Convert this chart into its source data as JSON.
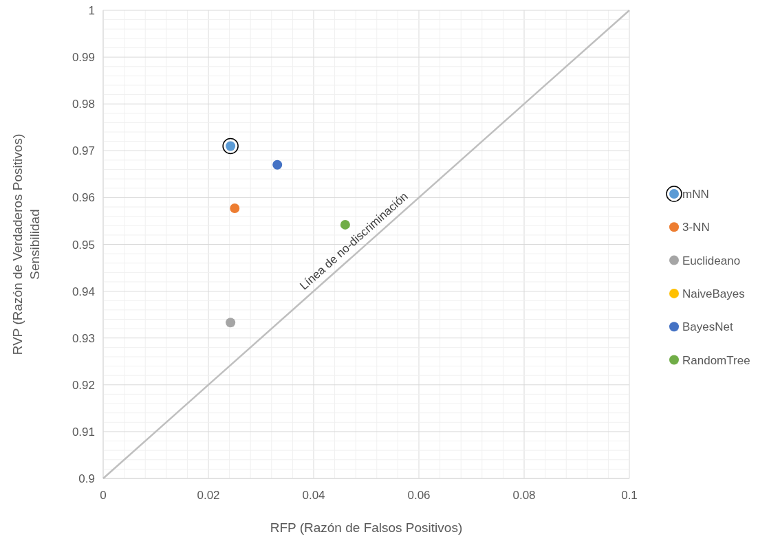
{
  "chart_data": {
    "type": "scatter",
    "xlabel": "RFP (Razón de Falsos Positivos)",
    "ylabel": "RVP (Razón de Verdaderos Positivos)\nSensibilidad",
    "series": [
      {
        "name": "mNN",
        "color": "#5b9bd5",
        "x": [
          0.0242
        ],
        "values": [
          0.971
        ]
      },
      {
        "name": "3-NN",
        "color": "#ed7d31",
        "x": [
          0.025
        ],
        "values": [
          0.9577
        ]
      },
      {
        "name": "Euclideano",
        "color": "#a5a5a5",
        "x": [
          0.0242
        ],
        "values": [
          0.9333
        ]
      },
      {
        "name": "NaiveBayes",
        "color": "#ffc000",
        "x": [
          null
        ],
        "values": [
          null
        ]
      },
      {
        "name": "BayesNet",
        "color": "#4472c4",
        "x": [
          0.0331
        ],
        "values": [
          0.967
        ]
      },
      {
        "name": "RandomTree",
        "color": "#70ad47",
        "x": [
          0.046
        ],
        "values": [
          0.9542
        ]
      },
      {
        "type": "line",
        "color": "#bfbfbf",
        "x": [
          0,
          0.1
        ],
        "values": [
          0.9,
          1
        ]
      }
    ],
    "annotations": [
      "Línea de no-discriminación"
    ],
    "xlim": [
      0,
      0.1
    ],
    "xticks": [
      0,
      0.02,
      0.04,
      0.06,
      0.08,
      0.1
    ],
    "ylim": [
      0.9,
      1
    ],
    "yticks": [
      0.9,
      0.91,
      0.92,
      0.93,
      0.94,
      0.95,
      0.96,
      0.97,
      0.98,
      0.99,
      1
    ],
    "grid": true,
    "legend": "right"
  }
}
